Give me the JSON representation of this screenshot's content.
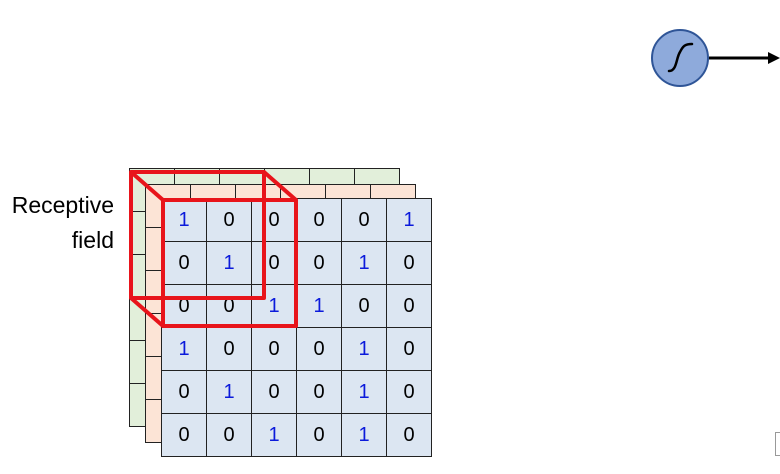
{
  "receptive_field_label": {
    "line1": "Receptive",
    "line2": "field"
  },
  "input_grid": [
    [
      "1",
      "0",
      "0",
      "0",
      "0",
      "1"
    ],
    [
      "0",
      "1",
      "0",
      "0",
      "1",
      "0"
    ],
    [
      "0",
      "0",
      "1",
      "1",
      "0",
      "0"
    ],
    [
      "1",
      "0",
      "0",
      "0",
      "1",
      "0"
    ],
    [
      "0",
      "1",
      "0",
      "0",
      "1",
      "0"
    ],
    [
      "0",
      "0",
      "1",
      "0",
      "1",
      "0"
    ]
  ],
  "layers": [
    {
      "name": "channel-3",
      "fill": "#e2efda"
    },
    {
      "name": "channel-2",
      "fill": "#fce4d6"
    },
    {
      "name": "channel-1",
      "fill": "#dce6f2"
    }
  ],
  "colors": {
    "one_value": "#0b1adb",
    "zero_value": "#000000",
    "receptive_field_outline": "#e8141b",
    "neuron_fill": "#8eaadb",
    "neuron_stroke": "#2f5597"
  },
  "neuron": {
    "activation_icon": "sigmoid-icon",
    "output_arrow": "arrow-right-icon"
  }
}
